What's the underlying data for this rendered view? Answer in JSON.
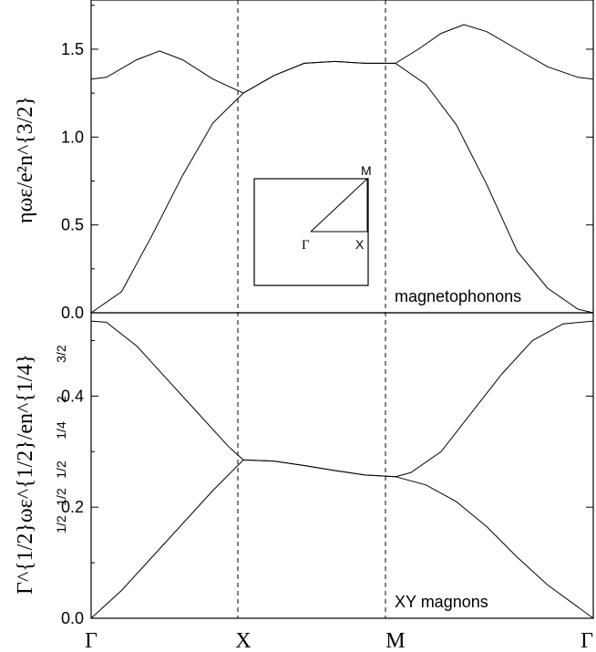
{
  "chart_data": [
    {
      "type": "line",
      "panel": "top",
      "ylabel": "ηωε/e²n^{3/2}",
      "ylim": [
        0,
        1.78
      ],
      "yticks": [
        "0.0",
        "0.5",
        "1.0",
        "1.5"
      ],
      "ytick_values": [
        0,
        0.5,
        1.0,
        1.5
      ],
      "x_points": [
        "Γ",
        "X",
        "M",
        "Γ"
      ],
      "annotation": "magnetophonons",
      "series": [
        {
          "points": [
            [
              0,
              0
            ],
            [
              0.2,
              0.12
            ],
            [
              0.4,
              0.44
            ],
            [
              0.6,
              0.78
            ],
            [
              0.8,
              1.08
            ],
            [
              1.0,
              1.25
            ],
            [
              1.2,
              1.35
            ],
            [
              1.4,
              1.42
            ],
            [
              1.6,
              1.43
            ],
            [
              1.8,
              1.42
            ],
            [
              2.0,
              1.42
            ],
            [
              2.2,
              1.3
            ],
            [
              2.4,
              1.07
            ],
            [
              2.6,
              0.73
            ],
            [
              2.8,
              0.35
            ],
            [
              3.0,
              0.14
            ],
            [
              3.2,
              0.02
            ],
            [
              3.3,
              0
            ]
          ]
        },
        {
          "points": [
            [
              0,
              1.33
            ],
            [
              0.1,
              1.34
            ],
            [
              0.3,
              1.44
            ],
            [
              0.45,
              1.49
            ],
            [
              0.6,
              1.44
            ],
            [
              0.8,
              1.33
            ],
            [
              1.0,
              1.25
            ],
            [
              1.2,
              1.35
            ],
            [
              1.4,
              1.42
            ],
            [
              1.6,
              1.43
            ],
            [
              1.8,
              1.42
            ],
            [
              2.0,
              1.42
            ],
            [
              2.15,
              1.5
            ],
            [
              2.3,
              1.59
            ],
            [
              2.45,
              1.64
            ],
            [
              2.6,
              1.6
            ],
            [
              2.8,
              1.5
            ],
            [
              3.0,
              1.4
            ],
            [
              3.2,
              1.34
            ],
            [
              3.3,
              1.33
            ]
          ]
        }
      ]
    },
    {
      "type": "line",
      "panel": "bottom",
      "ylabel": "Γ^{1/2}ωε^{1/2}/en^{1/4}",
      "ylim": [
        0,
        0.55
      ],
      "yticks": [
        "0.0",
        "0.2",
        "0.4"
      ],
      "ytick_values": [
        0,
        0.2,
        0.4
      ],
      "overlay_ylabel_fragments": [
        "3/2",
        "2",
        "1/4",
        "1/2",
        "1/2",
        "1/2"
      ],
      "x_points": [
        "Γ",
        "X",
        "M",
        "Γ"
      ],
      "annotation": "XY magnons",
      "series": [
        {
          "points": [
            [
              0,
              0
            ],
            [
              0.2,
              0.05
            ],
            [
              0.4,
              0.11
            ],
            [
              0.6,
              0.17
            ],
            [
              0.8,
              0.23
            ],
            [
              1.0,
              0.285
            ],
            [
              1.2,
              0.283
            ],
            [
              1.4,
              0.275
            ],
            [
              1.6,
              0.266
            ],
            [
              1.8,
              0.258
            ],
            [
              2.0,
              0.255
            ],
            [
              2.2,
              0.24
            ],
            [
              2.4,
              0.21
            ],
            [
              2.6,
              0.165
            ],
            [
              2.8,
              0.11
            ],
            [
              3.0,
              0.06
            ],
            [
              3.2,
              0.02
            ],
            [
              3.3,
              0
            ]
          ]
        },
        {
          "points": [
            [
              0,
              0.535
            ],
            [
              0.1,
              0.533
            ],
            [
              0.3,
              0.49
            ],
            [
              0.5,
              0.43
            ],
            [
              0.7,
              0.37
            ],
            [
              0.9,
              0.31
            ],
            [
              1.0,
              0.285
            ],
            [
              1.2,
              0.283
            ],
            [
              1.4,
              0.275
            ],
            [
              1.6,
              0.266
            ],
            [
              1.8,
              0.258
            ],
            [
              2.0,
              0.255
            ],
            [
              2.1,
              0.262
            ],
            [
              2.3,
              0.3
            ],
            [
              2.5,
              0.37
            ],
            [
              2.7,
              0.44
            ],
            [
              2.9,
              0.5
            ],
            [
              3.1,
              0.53
            ],
            [
              3.3,
              0.535
            ]
          ]
        }
      ]
    }
  ],
  "inset": {
    "labels": {
      "gamma": "Γ",
      "x": "X",
      "m": "M"
    }
  }
}
